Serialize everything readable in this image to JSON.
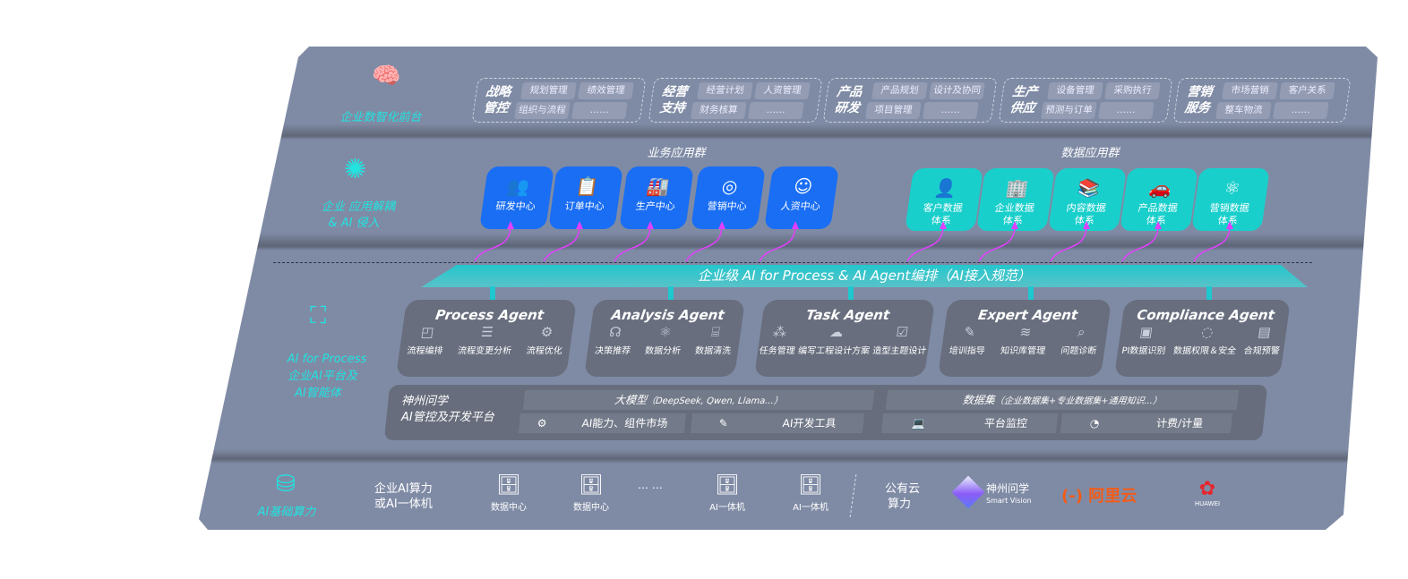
{
  "front": {
    "label": "企业数智化前台",
    "icon": "brain-icon",
    "groups": [
      {
        "title": "战略管控",
        "items": [
          "规划管理",
          "绩效管理",
          "组织与流程",
          "……"
        ]
      },
      {
        "title": "经营支持",
        "items": [
          "经营计划",
          "人资管理",
          "财务核算",
          "……"
        ]
      },
      {
        "title": "产品研发",
        "items": [
          "产品规划",
          "设计及协同",
          "项目管理",
          "……"
        ]
      },
      {
        "title": "生产供应",
        "items": [
          "设备管理",
          "采购执行",
          "预测与订单",
          "……"
        ]
      },
      {
        "title": "营销服务",
        "items": [
          "市场营销",
          "客户关系",
          "整车物流",
          "……"
        ]
      }
    ]
  },
  "apps": {
    "label1": "企业 应用解耦",
    "label2": "& AI 侵入",
    "icon": "molecule-icon",
    "business_title": "业务应用群",
    "business": [
      {
        "label": "研发中心",
        "icon": "team-icon",
        "glyph": "👥"
      },
      {
        "label": "订单中心",
        "icon": "clipboard-icon",
        "glyph": "📋"
      },
      {
        "label": "生产中心",
        "icon": "factory-icon",
        "glyph": "🏭"
      },
      {
        "label": "营销中心",
        "icon": "target-icon",
        "glyph": "◎"
      },
      {
        "label": "人资中心",
        "icon": "person-icon",
        "glyph": "☺"
      }
    ],
    "data_title": "数据应用群",
    "data": [
      {
        "label": "客户数据体系",
        "icon": "user-icon",
        "glyph": "👤"
      },
      {
        "label": "企业数据体系",
        "icon": "building-icon",
        "glyph": "🏢"
      },
      {
        "label": "内容数据体系",
        "icon": "books-icon",
        "glyph": "📚"
      },
      {
        "label": "产品数据体系",
        "icon": "car-icon",
        "glyph": "🚗"
      },
      {
        "label": "营销数据体系",
        "icon": "atom-icon",
        "glyph": "⚛"
      }
    ]
  },
  "banner": "企业级 AI for Process & AI Agent编排（AI接入规范）",
  "process": {
    "label1": "AI for Process",
    "label2": "企业AI平台及",
    "label3": "AI智能体",
    "icon": "face-scan-icon",
    "agents": [
      {
        "name": "Process Agent",
        "items": [
          [
            "流程编排",
            "◰"
          ],
          [
            "流程变更分析",
            "☰"
          ],
          [
            "流程优化",
            "⚙"
          ]
        ]
      },
      {
        "name": "Analysis Agent",
        "items": [
          [
            "决策推荐",
            "☊"
          ],
          [
            "数据分析",
            "⚛"
          ],
          [
            "数据清洗",
            "⌸"
          ]
        ]
      },
      {
        "name": "Task Agent",
        "items": [
          [
            "任务管理",
            "⁂"
          ],
          [
            "编写工程设计方案",
            "☁"
          ],
          [
            "造型主题设计",
            "☑"
          ]
        ]
      },
      {
        "name": "Expert Agent",
        "items": [
          [
            "培训指导",
            "✎"
          ],
          [
            "知识库管理",
            "≋"
          ],
          [
            "问题诊断",
            "⌕"
          ]
        ]
      },
      {
        "name": "Compliance Agent",
        "items": [
          [
            "PI数据识别",
            "▣"
          ],
          [
            "数据权限＆安全",
            "◌"
          ],
          [
            "合规预警",
            "▤"
          ]
        ]
      }
    ],
    "platform": {
      "title1": "神州问学",
      "title2": "AI管控及开发平台",
      "model": "大模型",
      "model_note": "（DeepSeek, Qwen, Llama...）",
      "dataset": "数据集",
      "dataset_note": "（企业数据集+专业数据集+通用知识...）",
      "tools": [
        {
          "label": "AI能力、组件市场",
          "icon": "market-icon",
          "glyph": "⚙"
        },
        {
          "label": "AI开发工具",
          "icon": "dev-tool-icon",
          "glyph": "✎"
        },
        {
          "label": "平台监控",
          "icon": "monitor-icon",
          "glyph": "💻"
        },
        {
          "label": "计费/计量",
          "icon": "gauge-icon",
          "glyph": "◔"
        }
      ]
    }
  },
  "infra": {
    "label": "AI基础算力",
    "icon": "database-icon",
    "private1": "企业AI算力",
    "private2": "或AI一体机",
    "servers": [
      "数据中心",
      "数据中心",
      "AI一体机",
      "AI一体机"
    ],
    "ellipsis": "… …",
    "public1": "公有云",
    "public2": "算力",
    "vendors": {
      "sv_cn": "神州问学",
      "sv_en": "Smart Vision",
      "aliyun": "阿里云",
      "aliyun_mark": "(-)",
      "huawei": "HUAWEI"
    }
  },
  "colors": {
    "cyan": "#22e3e0",
    "blue": "#1a6ef3",
    "teal": "#19cfcb",
    "magenta": "#e040fb",
    "panel": "#7f8ba5"
  }
}
